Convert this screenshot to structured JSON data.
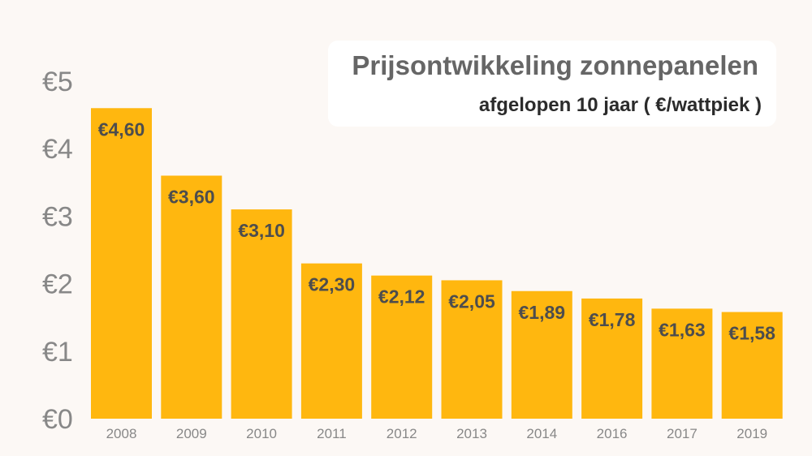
{
  "chart_data": {
    "type": "bar",
    "title": "Prijsontwikkeling zonnepanelen",
    "subtitle": "afgelopen 10 jaar ( €/wattpiek )",
    "categories": [
      "2008",
      "2009",
      "2010",
      "2011",
      "2012",
      "2013",
      "2014",
      "2016",
      "2017",
      "2019"
    ],
    "values": [
      4.6,
      3.6,
      3.1,
      2.3,
      2.12,
      2.05,
      1.89,
      1.78,
      1.63,
      1.58
    ],
    "data_labels": [
      "€4,60",
      "€3,60",
      "€3,10",
      "€2,30",
      "€2,12",
      "€2,05",
      "€1,89",
      "€1,78",
      "€1,63",
      "€1,58"
    ],
    "y_ticks": [
      0,
      1,
      2,
      3,
      4,
      5
    ],
    "y_tick_labels": [
      "€0",
      "€1",
      "€2",
      "€3",
      "€4",
      "€5"
    ],
    "ylim": [
      0,
      5
    ],
    "grid": false,
    "legend": "none",
    "colors": {
      "bar": "#ffb70f",
      "background": "#fcf8f5",
      "data_label": "#4d4d4d",
      "tick_label": "#888888",
      "title": "#666666",
      "subtitle": "#2b2b2b"
    }
  }
}
